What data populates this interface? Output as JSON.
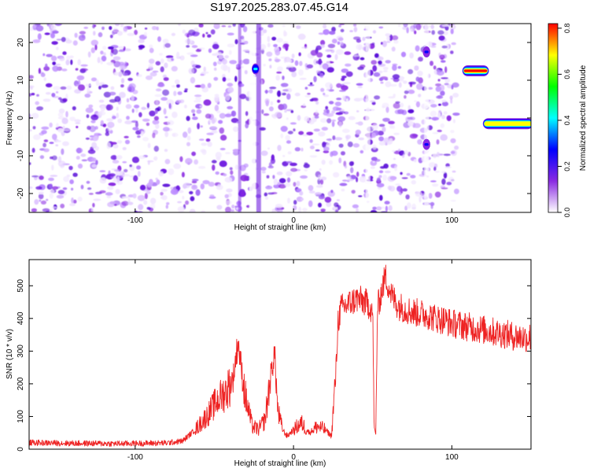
{
  "title": "S197.2025.283.07.45.G14",
  "chart_data": [
    {
      "type": "heatmap",
      "xlabel": "Height of straight line (km)",
      "ylabel": "Frequency (Hz)",
      "xlim": [
        -167,
        150
      ],
      "ylim": [
        -25,
        25
      ],
      "xticks": [
        -100,
        0,
        100
      ],
      "yticks": [
        -20,
        -10,
        0,
        10,
        20
      ],
      "colorbar": {
        "label": "Normalized spectral amplitude",
        "range": [
          0,
          0.82
        ],
        "ticks": [
          0.0,
          0.2,
          0.4,
          0.6,
          0.8
        ],
        "colormap": [
          "#ffffff",
          "#8a2be2",
          "#0000ff",
          "#00ffff",
          "#00ff00",
          "#ffff00",
          "#ff0000"
        ]
      },
      "noise_region_x": [
        -167,
        103
      ],
      "features": [
        {
          "name": "",
          "x_start": 108,
          "x_end": 122,
          "frequency": 12.5,
          "peak_amplitude": 0.8
        },
        {
          "name": "",
          "x_start": 121,
          "x_end": 150,
          "frequency": -1.5,
          "peak_amplitude": 0.78
        },
        {
          "name": "",
          "x_start": -25,
          "x_end": -23,
          "frequency": 13,
          "peak_amplitude": 0.3
        },
        {
          "name": "",
          "x_start": 83,
          "x_end": 85,
          "frequency": 17.5,
          "peak_amplitude": 0.2
        },
        {
          "name": "",
          "x_start": 83,
          "x_end": 85,
          "frequency": -7,
          "peak_amplitude": 0.2
        }
      ]
    },
    {
      "type": "line",
      "xlabel": "Height of straight line (km)",
      "ylabel": "SNR (10 * v/v)",
      "xlim": [
        -167,
        150
      ],
      "ylim": [
        0,
        580
      ],
      "xticks": [
        -100,
        0,
        100
      ],
      "yticks": [
        0,
        100,
        200,
        300,
        400,
        500
      ],
      "color": "#ee2222",
      "x": [
        -167,
        -140,
        -110,
        -80,
        -70,
        -62,
        -55,
        -48,
        -42,
        -38,
        -35,
        -32,
        -30,
        -26,
        -22,
        -18,
        -15,
        -12,
        -10,
        -7,
        -4,
        0,
        5,
        10,
        15,
        20,
        24,
        27,
        28,
        30,
        35,
        40,
        45,
        48,
        50,
        51,
        52,
        53,
        55,
        58,
        62,
        66,
        70,
        75,
        80,
        85,
        90,
        95,
        100,
        105,
        110,
        115,
        120,
        130,
        140,
        148,
        150
      ],
      "y": [
        20,
        18,
        17,
        19,
        25,
        60,
        100,
        150,
        180,
        220,
        330,
        210,
        150,
        70,
        60,
        90,
        200,
        300,
        120,
        60,
        40,
        60,
        80,
        50,
        70,
        60,
        40,
        250,
        390,
        430,
        445,
        460,
        450,
        440,
        420,
        60,
        45,
        430,
        470,
        530,
        470,
        440,
        430,
        420,
        415,
        410,
        400,
        395,
        385,
        380,
        375,
        370,
        365,
        355,
        345,
        340,
        345
      ]
    }
  ]
}
